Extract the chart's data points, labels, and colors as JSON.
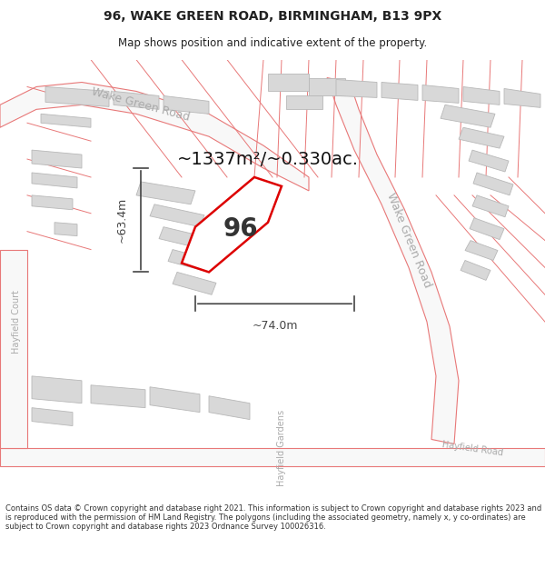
{
  "title": "96, WAKE GREEN ROAD, BIRMINGHAM, B13 9PX",
  "subtitle": "Map shows position and indicative extent of the property.",
  "footer": "Contains OS data © Crown copyright and database right 2021. This information is subject to Crown copyright and database rights 2023 and is reproduced with the permission of HM Land Registry. The polygons (including the associated geometry, namely x, y co-ordinates) are subject to Crown copyright and database rights 2023 Ordnance Survey 100026316.",
  "property_label": "96",
  "area_label": "~1337m²/~0.330ac.",
  "dim_width": "~74.0m",
  "dim_height": "~63.4m",
  "map_bg": "#ffffff",
  "parcel_line": "#e87878",
  "building_fill": "#d8d8d8",
  "building_stroke": "#b8b8b8",
  "road_label_color": "#aaaaaa",
  "highlight_fill": "#ffffff",
  "highlight_stroke": "#dd0000",
  "dim_color": "#444444",
  "text_color": "#222222",
  "footer_color": "#333333",
  "title_fontsize": 10,
  "subtitle_fontsize": 8.5
}
